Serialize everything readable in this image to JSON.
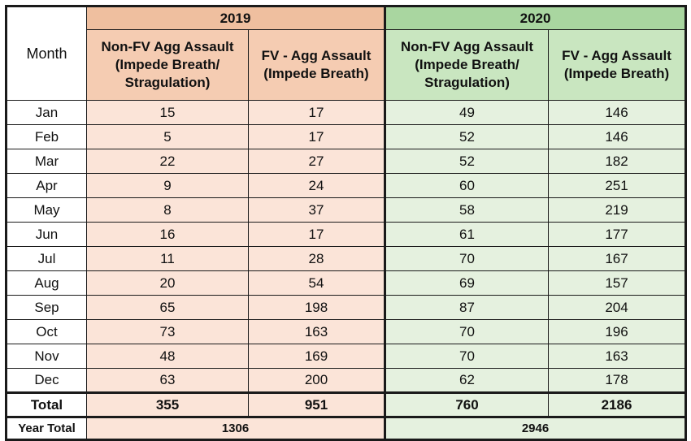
{
  "header": {
    "month_label": "Month",
    "year_2019": "2019",
    "year_2020": "2020",
    "col_nonfv_2019": "Non-FV Agg Assault (Impede Breath/ Stragulation)",
    "col_fv_2019": "FV - Agg Assault (Impede Breath)",
    "col_nonfv_2020": "Non-FV Agg Assault (Impede Breath/ Stragulation)",
    "col_fv_2020": "FV - Agg Assault (Impede Breath)"
  },
  "rows": [
    {
      "month": "Jan",
      "nonfv_2019": "15",
      "fv_2019": "17",
      "nonfv_2020": "49",
      "fv_2020": "146"
    },
    {
      "month": "Feb",
      "nonfv_2019": "5",
      "fv_2019": "17",
      "nonfv_2020": "52",
      "fv_2020": "146"
    },
    {
      "month": "Mar",
      "nonfv_2019": "22",
      "fv_2019": "27",
      "nonfv_2020": "52",
      "fv_2020": "182"
    },
    {
      "month": "Apr",
      "nonfv_2019": "9",
      "fv_2019": "24",
      "nonfv_2020": "60",
      "fv_2020": "251"
    },
    {
      "month": "May",
      "nonfv_2019": "8",
      "fv_2019": "37",
      "nonfv_2020": "58",
      "fv_2020": "219"
    },
    {
      "month": "Jun",
      "nonfv_2019": "16",
      "fv_2019": "17",
      "nonfv_2020": "61",
      "fv_2020": "177"
    },
    {
      "month": "Jul",
      "nonfv_2019": "11",
      "fv_2019": "28",
      "nonfv_2020": "70",
      "fv_2020": "167"
    },
    {
      "month": "Aug",
      "nonfv_2019": "20",
      "fv_2019": "54",
      "nonfv_2020": "69",
      "fv_2020": "157"
    },
    {
      "month": "Sep",
      "nonfv_2019": "65",
      "fv_2019": "198",
      "nonfv_2020": "87",
      "fv_2020": "204"
    },
    {
      "month": "Oct",
      "nonfv_2019": "73",
      "fv_2019": "163",
      "nonfv_2020": "70",
      "fv_2020": "196"
    },
    {
      "month": "Nov",
      "nonfv_2019": "48",
      "fv_2019": "169",
      "nonfv_2020": "70",
      "fv_2020": "163"
    },
    {
      "month": "Dec",
      "nonfv_2019": "63",
      "fv_2019": "200",
      "nonfv_2020": "62",
      "fv_2020": "178"
    }
  ],
  "total": {
    "label": "Total",
    "nonfv_2019": "355",
    "fv_2019": "951",
    "nonfv_2020": "760",
    "fv_2020": "2186"
  },
  "year_total": {
    "label": "Year Total",
    "y2019": "1306",
    "y2020": "2946"
  },
  "colors": {
    "header_2019": "#efbf9f",
    "sub_2019": "#f5ccb2",
    "cell_2019": "#fbe4d8",
    "header_2020": "#a9d6a0",
    "sub_2020": "#c9e6c0",
    "cell_2020": "#e5f1df"
  }
}
